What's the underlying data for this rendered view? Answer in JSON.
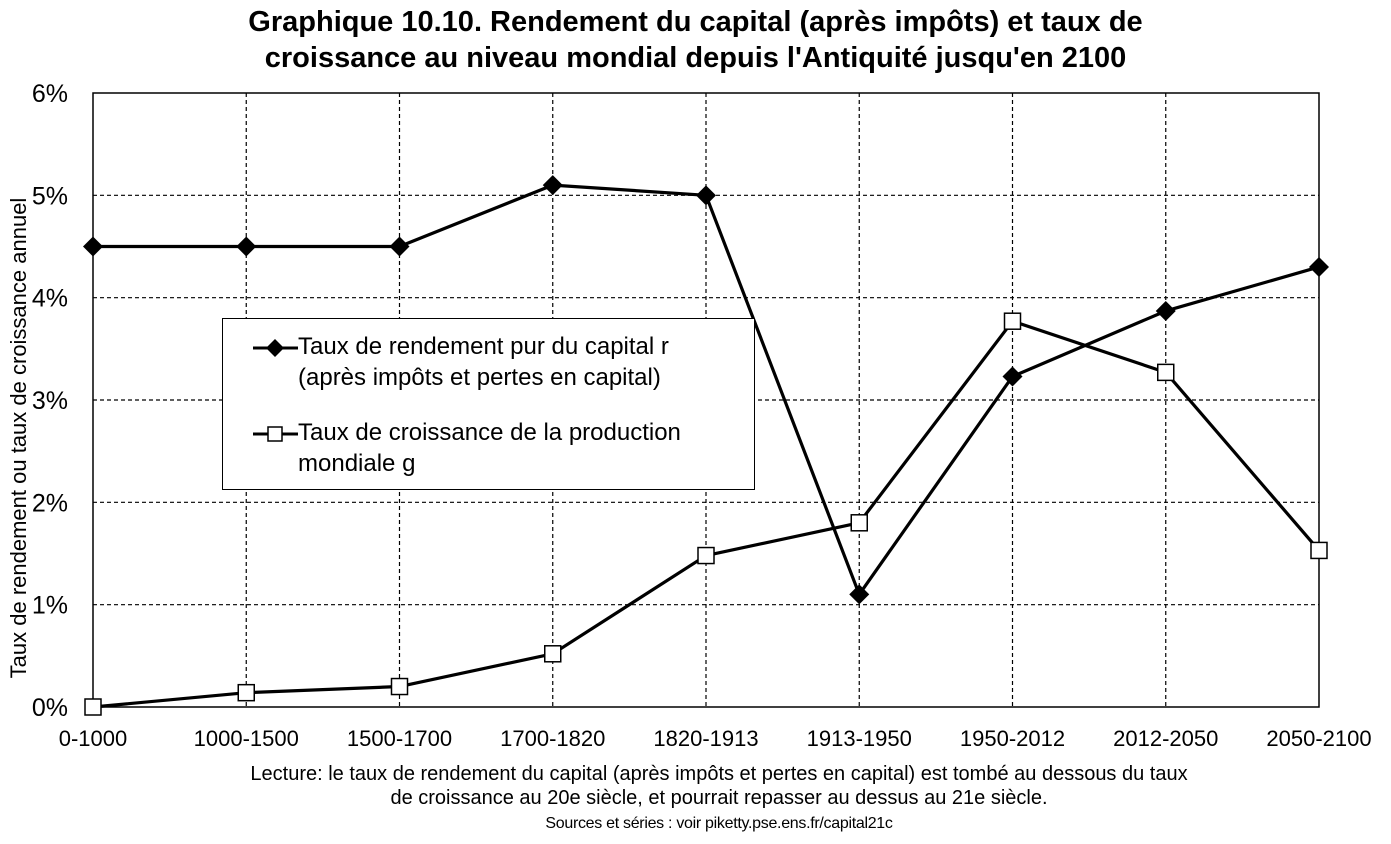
{
  "title": {
    "line1": "Graphique 10.10. Rendement du capital (après impôts) et taux de",
    "line2": "croissance au niveau mondial depuis l'Antiquité jusqu'en 2100"
  },
  "chart_data": {
    "type": "line",
    "title": "Graphique 10.10. Rendement du capital (après impôts) et taux de croissance au niveau mondial depuis l'Antiquité jusqu'en 2100",
    "xlabel": "",
    "ylabel": "Taux de rendement ou taux de croissance annuel",
    "categories": [
      "0-1000",
      "1000-1500",
      "1500-1700",
      "1700-1820",
      "1820-1913",
      "1913-1950",
      "1950-2012",
      "2012-2050",
      "2050-2100"
    ],
    "y_ticks": [
      "0%",
      "1%",
      "2%",
      "3%",
      "4%",
      "5%",
      "6%"
    ],
    "ylim": [
      0,
      6
    ],
    "grid": true,
    "legend_position": "center-left",
    "series": [
      {
        "name_line1": "Taux de rendement pur du capital r",
        "name_line2": "(après impôts et pertes en capital)",
        "marker": "filled-diamond",
        "values": [
          4.5,
          4.5,
          4.5,
          5.1,
          5.0,
          1.1,
          3.23,
          3.87,
          4.3
        ]
      },
      {
        "name_line1": "Taux de croissance de la production",
        "name_line2": "mondiale g",
        "marker": "hollow-square",
        "values": [
          0.0,
          0.14,
          0.2,
          0.52,
          1.48,
          1.8,
          3.77,
          3.27,
          1.53
        ]
      }
    ]
  },
  "notes": {
    "reading_line1": "Lecture: le taux de rendement du capital (après impôts et pertes en capital) est tombé au dessous du taux",
    "reading_line2": "de croissance au 20e siècle, et pourrait repasser au dessus au 21e siècle.",
    "sources": "Sources et séries : voir piketty.pse.ens.fr/capital21c"
  },
  "colors": {
    "line": "#000000",
    "grid": "#000000",
    "background": "#ffffff"
  }
}
